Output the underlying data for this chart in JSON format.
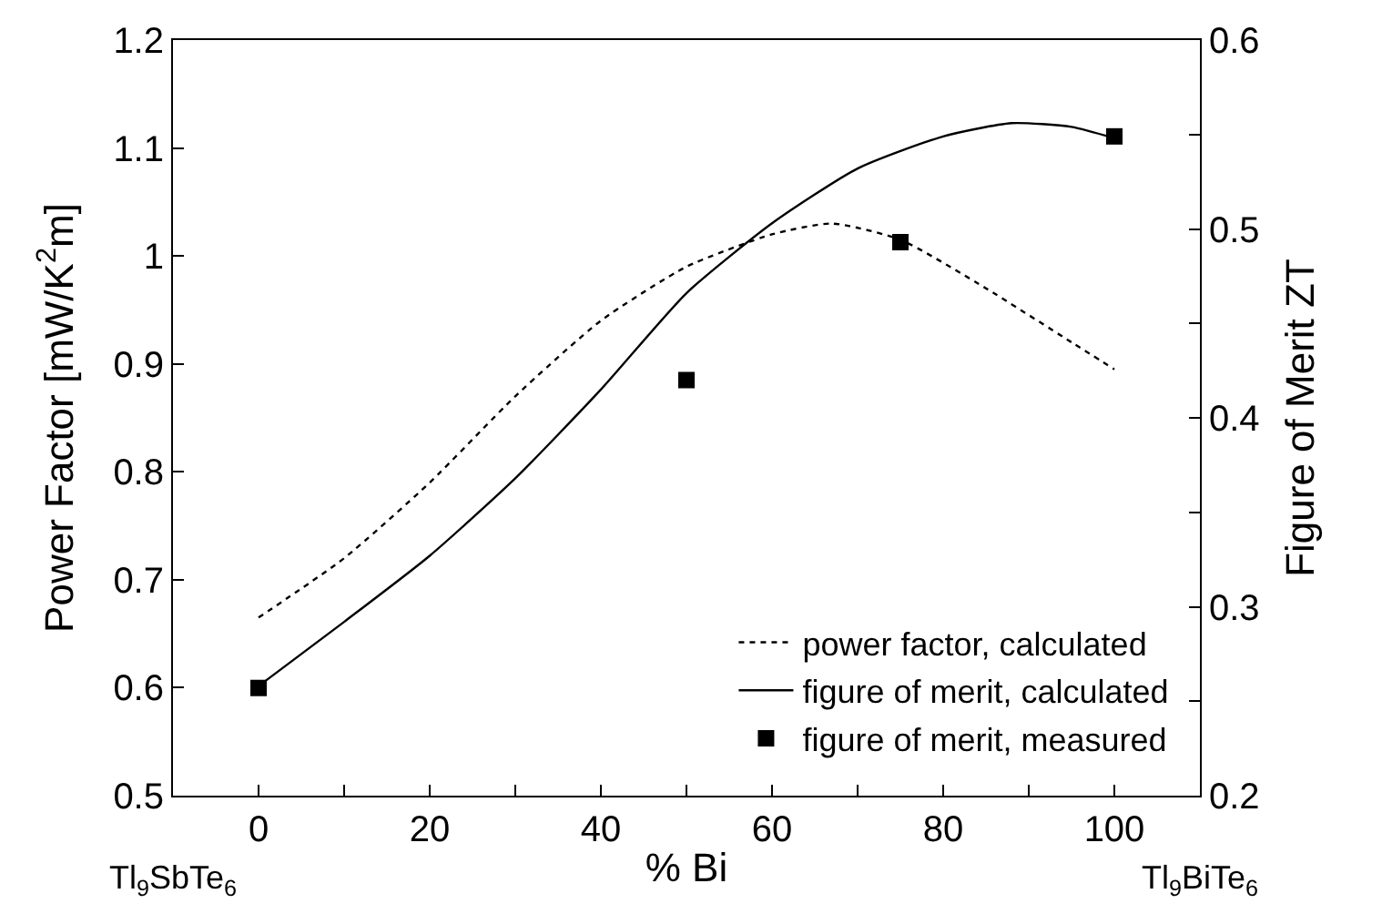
{
  "chart_data": {
    "type": "line",
    "xlabel": "% Bi",
    "ylabel": "Power Factor [mW/K$^{2}$m]",
    "y2label": "Figure of Merit ZT",
    "annotations": [
      "Tl$_{9}$SbTe$_{6}$",
      "Tl$_{9}$BiTe$_{6}$"
    ],
    "xlim": [
      -10,
      110
    ],
    "xticks": [
      0,
      {
        "value": 10,
        "label": null
      },
      20,
      {
        "value": 30,
        "label": null
      },
      40,
      {
        "value": 50,
        "label": null
      },
      60,
      {
        "value": 70,
        "label": null
      },
      80,
      {
        "value": 90,
        "label": null
      },
      100
    ],
    "ylim": [
      0.5,
      1.2
    ],
    "yticks": [
      0.5,
      0.6,
      0.7,
      0.8,
      0.9,
      1,
      1.1,
      1.2
    ],
    "y2lim": [
      0.2,
      0.6
    ],
    "y2ticks": [
      0.2,
      {
        "value": 0.25,
        "label": null
      },
      0.3,
      {
        "value": 0.35,
        "label": null
      },
      0.4,
      {
        "value": 0.45,
        "label": null
      },
      0.5,
      {
        "value": 0.55,
        "label": null
      },
      0.6
    ],
    "legend": "bottom right",
    "series": [
      {
        "name": "power factor, calculated",
        "line_style": "dotted",
        "marker": "none",
        "color": "#000000",
        "x": [
          0,
          10,
          20,
          30,
          40,
          50,
          60,
          67,
          75,
          85,
          95,
          100
        ],
        "values": [
          0.665,
          0.72,
          0.79,
          0.87,
          0.94,
          0.99,
          1.02,
          1.03,
          1.015,
          0.97,
          0.92,
          0.895
        ]
      },
      {
        "name": "figure of merit, calculated",
        "line_style": "solid",
        "marker": "none",
        "axis": "y2",
        "color": "#000000",
        "x": [
          0,
          10,
          20,
          30,
          40,
          50,
          60,
          70,
          80,
          88,
          95,
          100
        ],
        "values": [
          0.258,
          0.292,
          0.327,
          0.368,
          0.415,
          0.466,
          0.503,
          0.532,
          0.549,
          0.556,
          0.554,
          0.548
        ]
      },
      {
        "name": "figure of merit, measured",
        "type": "scatter",
        "marker": "square",
        "axis": "y2",
        "color": "#000000",
        "x": [
          0,
          50,
          75,
          100
        ],
        "values": [
          0.257,
          0.42,
          0.493,
          0.549
        ]
      }
    ]
  }
}
